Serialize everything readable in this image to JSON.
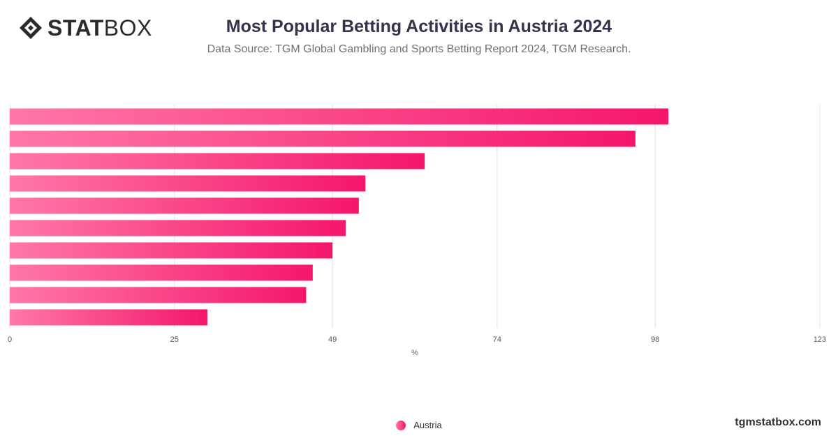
{
  "header": {
    "logo_bold": "STAT",
    "logo_light": "BOX",
    "title": "Most Popular Betting Activities in Austria 2024",
    "subtitle": "Data Source: TGM Global Gambling and Sports Betting Report 2024, TGM Research."
  },
  "footer": {
    "legend_label": "Austria",
    "site": "tgmstatbox.com"
  },
  "colors": {
    "bar_start": "#ff77a8",
    "bar_end": "#f5166b",
    "grid": "#e0e0e0",
    "title": "#33334d"
  },
  "chart_data": {
    "type": "bar",
    "orientation": "horizontal",
    "title": "Most Popular Betting Activities in Austria 2024",
    "subtitle": "Data Source: TGM Global Gambling and Sports Betting Report 2024, TGM Research.",
    "xlabel": "%",
    "ylabel": "",
    "xlim": [
      0,
      123
    ],
    "xticks": [
      0,
      25,
      49,
      74,
      98,
      123
    ],
    "grid": true,
    "legend_position": "bottom",
    "categories": [
      "",
      "",
      "",
      "",
      "",
      "",
      "",
      "",
      "",
      ""
    ],
    "series": [
      {
        "name": "Austria",
        "values": [
          100,
          95,
          63,
          54,
          53,
          51,
          49,
          46,
          45,
          30
        ]
      }
    ]
  }
}
